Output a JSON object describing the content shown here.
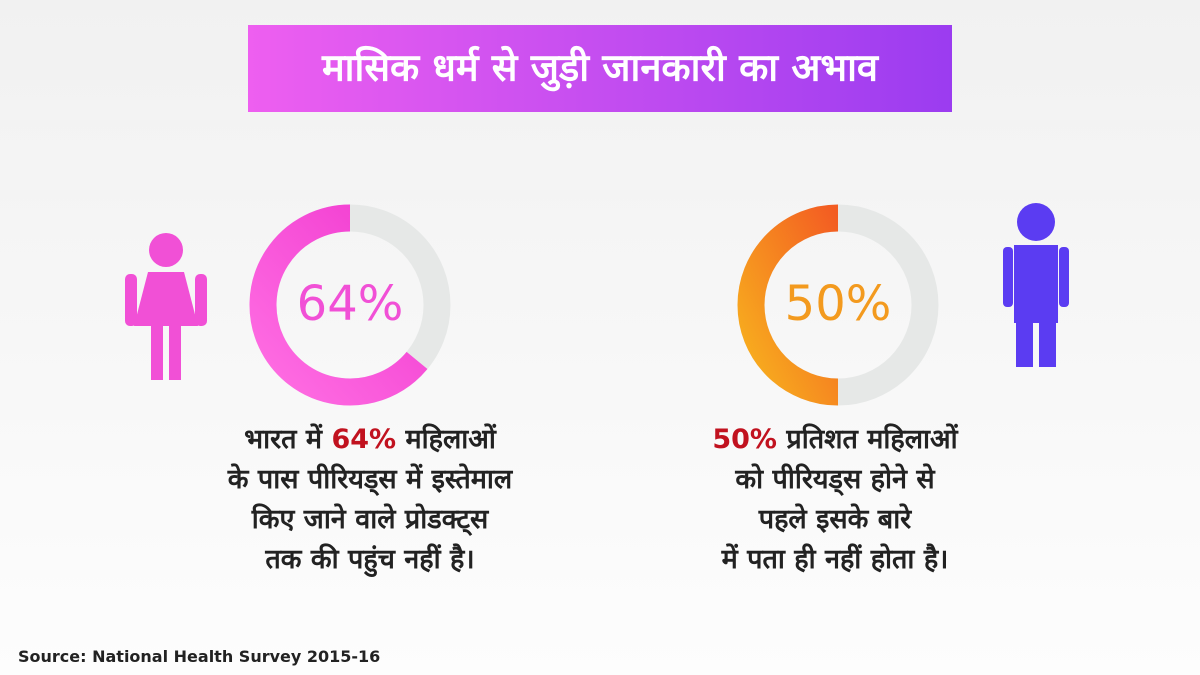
{
  "title": "मासिक धर्म से जुड़ी जानकारी का अभाव",
  "source": "Source: National Health Survey 2015-16",
  "chart_data": [
    {
      "type": "donut",
      "values": [
        64
      ],
      "value_labels": [
        "64%"
      ],
      "color": [
        "#ff6fe3",
        "#f13ad0"
      ],
      "track_color": "#e6e8e7",
      "label_color": "#f150d6",
      "caption": [
        [
          {
            "text": "भारत में "
          },
          {
            "text": "64%",
            "highlight": true
          },
          {
            "text": " महिलाओं"
          }
        ],
        [
          {
            "text": "के पास पीरियड्स में इस्तेमाल"
          }
        ],
        [
          {
            "text": "किए जाने वाले प्रोडक्ट्स"
          }
        ],
        [
          {
            "text": "तक की पहुंच नहीं है।"
          }
        ]
      ]
    },
    {
      "type": "donut",
      "values": [
        50
      ],
      "value_labels": [
        "50%"
      ],
      "color": [
        "#f8b21e",
        "#f35c22"
      ],
      "track_color": "#e6e8e7",
      "label_color": "#f39a1e",
      "caption": [
        [
          {
            "text": "50%",
            "highlight": true
          },
          {
            "text": " प्रतिशत महिलाओं"
          }
        ],
        [
          {
            "text": "को पीरियड्स होने से"
          }
        ],
        [
          {
            "text": "पहले इसके बारे"
          }
        ],
        [
          {
            "text": "में पता ही नहीं होता है।"
          }
        ]
      ]
    }
  ]
}
